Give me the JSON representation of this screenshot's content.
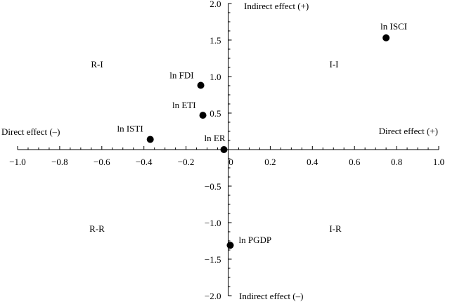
{
  "chart_data": {
    "type": "scatter",
    "title": "",
    "xlabel": "",
    "ylabel": "",
    "xlim": [
      -1.0,
      1.0
    ],
    "ylim": [
      -2.0,
      2.0
    ],
    "x_ticks": [
      "−1.0",
      "−0.8",
      "−0.6",
      "−0.4",
      "−0.2",
      "0",
      "0.2",
      "0.4",
      "0.6",
      "0.8",
      "1.0"
    ],
    "y_ticks": [
      "2.0",
      "1.5",
      "1.0",
      "0.5",
      "−0.5",
      "−1.0",
      "−1.5",
      "−2.0"
    ],
    "x_end_labels": {
      "negative": "Direct effect (–)",
      "positive": "Direct effect (+)"
    },
    "y_end_labels": {
      "positive": "Indirect effect (+)",
      "negative": "Indirect effect (–)"
    },
    "quadrant_labels": {
      "top_left": "R-I",
      "top_right": "I-I",
      "bottom_left": "R-R",
      "bottom_right": "I-R"
    },
    "grid": false,
    "points": [
      {
        "label": "ln ISCI",
        "x": 0.75,
        "y": 1.53
      },
      {
        "label": "ln FDI",
        "x": -0.13,
        "y": 0.88
      },
      {
        "label": "ln ETI",
        "x": -0.12,
        "y": 0.47
      },
      {
        "label": "ln ISTI",
        "x": -0.37,
        "y": 0.14
      },
      {
        "label": "ln ER",
        "x": -0.02,
        "y": 0.0
      },
      {
        "label": "ln PGDP",
        "x": 0.01,
        "y": -1.31
      }
    ],
    "marker_color": "#000000"
  }
}
